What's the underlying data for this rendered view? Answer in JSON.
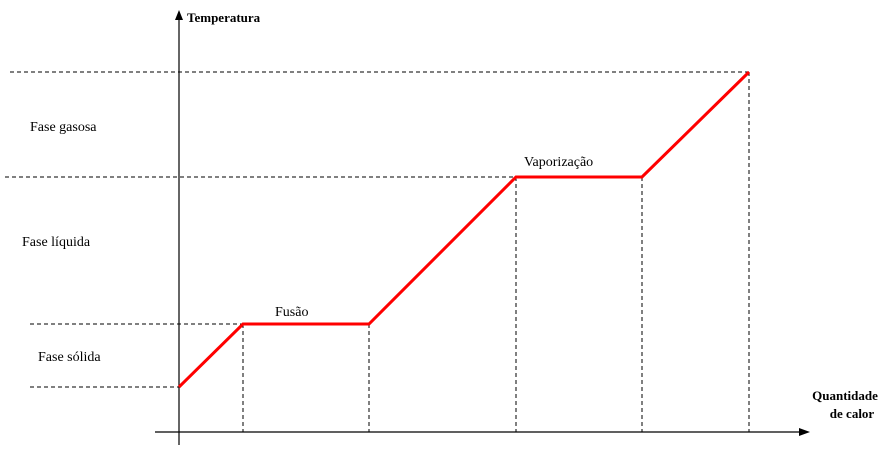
{
  "diagram": {
    "y_axis_label": "Temperatura",
    "x_axis_label": [
      "Quantidade",
      "de calor"
    ],
    "phases": [
      "Fase gasosa",
      "Fase líquida",
      "Fase sólida"
    ],
    "transitions": [
      "Fusão",
      "Vaporização"
    ]
  }
}
